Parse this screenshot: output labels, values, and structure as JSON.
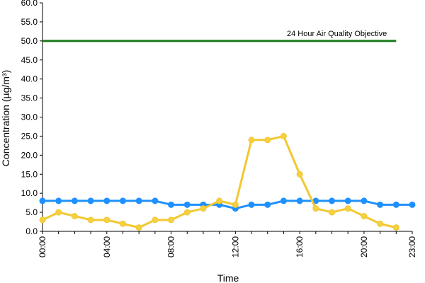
{
  "chart_data": {
    "type": "line",
    "xlabel": "Time",
    "ylabel": "Concentration (µg/m³)",
    "x": [
      "00:00",
      "01:00",
      "02:00",
      "03:00",
      "04:00",
      "05:00",
      "06:00",
      "07:00",
      "08:00",
      "09:00",
      "10:00",
      "11:00",
      "12:00",
      "13:00",
      "14:00",
      "15:00",
      "16:00",
      "17:00",
      "18:00",
      "19:00",
      "20:00",
      "21:00",
      "22:00",
      "23:00"
    ],
    "x_tick_labels": [
      "00:00",
      "04:00",
      "08:00",
      "12:00",
      "16:00",
      "20:00",
      "23:00"
    ],
    "y_tick_labels": [
      "0.0",
      "5.0",
      "10.0",
      "15.0",
      "20.0",
      "25.0",
      "30.0",
      "35.0",
      "40.0",
      "45.0",
      "50.0",
      "55.0",
      "60.0"
    ],
    "ylim": [
      0,
      60
    ],
    "grid": false,
    "series": [
      {
        "color": "#1e90ff",
        "values": [
          8,
          8,
          8,
          8,
          8,
          8,
          8,
          8,
          7,
          7,
          7,
          7,
          6,
          7,
          7,
          8,
          8,
          8,
          8,
          8,
          8,
          7,
          7,
          7
        ]
      },
      {
        "color": "#f2c830",
        "marker_color": "#f5d040",
        "values": [
          3,
          5,
          4,
          3,
          3,
          2,
          1,
          3,
          3,
          5,
          6,
          8,
          7,
          24,
          24,
          25,
          15,
          6,
          5,
          6,
          4,
          2,
          1,
          null
        ]
      }
    ],
    "reference_line": {
      "value": 50,
      "label": "24 Hour Air Quality Objective",
      "color": "#1a7a1a"
    }
  }
}
